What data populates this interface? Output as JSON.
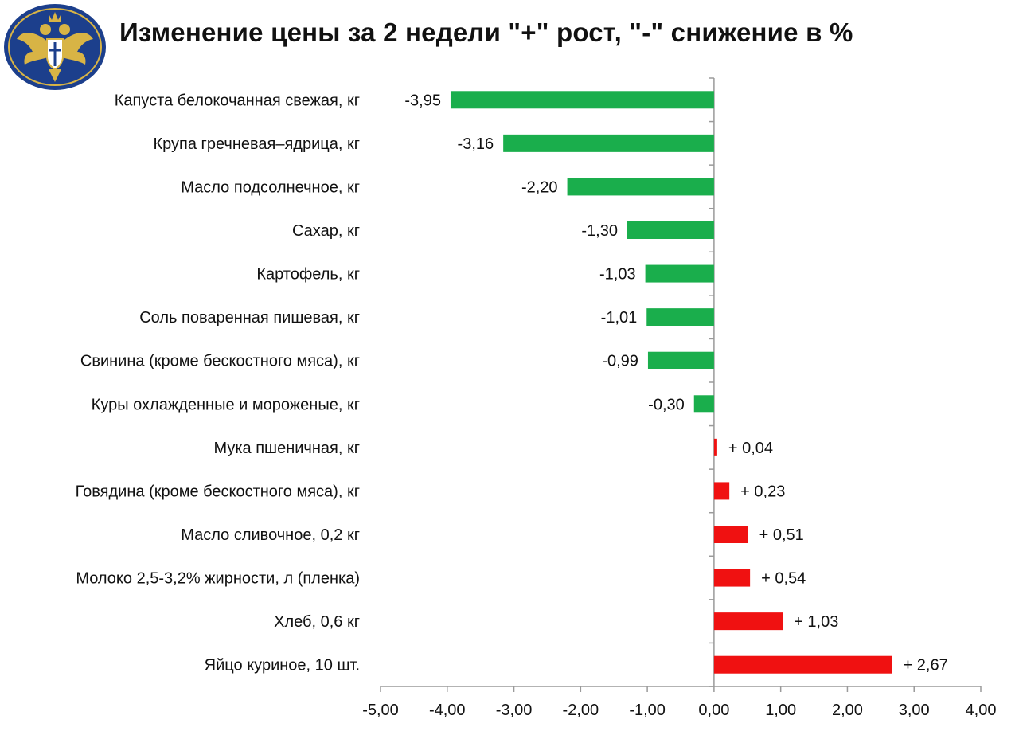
{
  "title": "Изменение цены за 2 недели \"+\" рост, \"-\" снижение в %",
  "emblem": {
    "icon": "double-headed-eagle-emblem-icon"
  },
  "colors": {
    "decrease": "#1aae4c",
    "increase": "#f01111",
    "axis": "#9a9a9a"
  },
  "chart_data": {
    "type": "bar",
    "orientation": "horizontal",
    "title": "Изменение цены за 2 недели \"+\" рост, \"-\" снижение в %",
    "xlabel": "",
    "ylabel": "",
    "xlim": [
      -5,
      4
    ],
    "x_ticks": [
      -5,
      -4,
      -3,
      -2,
      -1,
      0,
      1,
      2,
      3,
      4
    ],
    "x_tick_labels": [
      "-5,00",
      "-4,00",
      "-3,00",
      "-2,00",
      "-1,00",
      "0,00",
      "1,00",
      "2,00",
      "3,00",
      "4,00"
    ],
    "grid": false,
    "legend": "none",
    "categories": [
      "Капуста белокочанная свежая, кг",
      "Крупа гречневая–ядрица,  кг",
      "Масло подсолнечное, кг",
      "Сахар, кг",
      "Картофель, кг",
      "Соль поваренная пишевая,  кг",
      "Свинина (кроме бескостного мяса), кг",
      "Куры охлажденные и мороженые, кг",
      "Мука пшеничная, кг",
      "Говядина (кроме бескостного мяса), кг",
      "Масло сливочное, 0,2 кг",
      "Молоко 2,5-3,2% жирности, л (пленка)",
      "Хлеб, 0,6 кг",
      "Яйцо куриное, 10 шт."
    ],
    "values": [
      -3.95,
      -3.16,
      -2.2,
      -1.3,
      -1.03,
      -1.01,
      -0.99,
      -0.3,
      0.04,
      0.23,
      0.51,
      0.54,
      1.03,
      2.67
    ],
    "data_labels": [
      "-3,95",
      "-3,16",
      "-2,20",
      "-1,30",
      "-1,03",
      "-1,01",
      "-0,99",
      "-0,30",
      "+ 0,04",
      "+ 0,23",
      "+ 0,51",
      "+ 0,54",
      "+ 1,03",
      "+ 2,67"
    ]
  }
}
